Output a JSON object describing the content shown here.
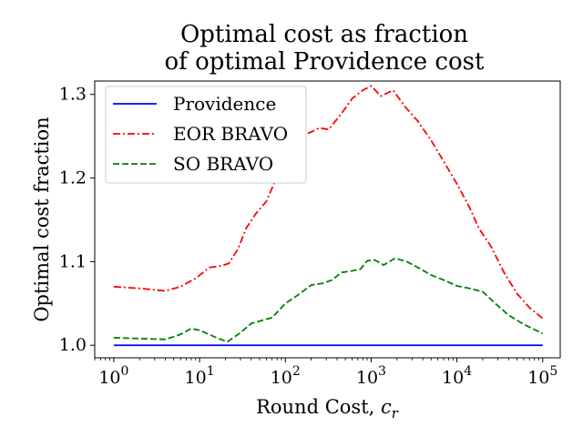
{
  "chart_data": {
    "type": "line",
    "title_line1": "Optimal cost as fraction",
    "title_line2": "of optimal Providence cost",
    "xlabel": "Round Cost, ",
    "xlabel_var": "c",
    "xlabel_sub": "r",
    "ylabel": "Optimal cost fraction",
    "xscale": "log",
    "xlim": [
      0.6,
      160000
    ],
    "ylim": [
      0.985,
      1.316
    ],
    "x_ticks": [
      {
        "value": 1,
        "base": "10",
        "exp": "0"
      },
      {
        "value": 10,
        "base": "10",
        "exp": "1"
      },
      {
        "value": 100,
        "base": "10",
        "exp": "2"
      },
      {
        "value": 1000,
        "base": "10",
        "exp": "3"
      },
      {
        "value": 10000,
        "base": "10",
        "exp": "4"
      },
      {
        "value": 100000,
        "base": "10",
        "exp": "5"
      }
    ],
    "y_ticks": [
      {
        "value": 1.0,
        "label": "1.0"
      },
      {
        "value": 1.1,
        "label": "1.1"
      },
      {
        "value": 1.2,
        "label": "1.2"
      },
      {
        "value": 1.3,
        "label": "1.3"
      }
    ],
    "legend_position": "top-left",
    "grid": false,
    "series": [
      {
        "name": "Providence",
        "color": "#0000ff",
        "dash": "solid",
        "points": [
          [
            1,
            1.0
          ],
          [
            100000,
            1.0
          ]
        ]
      },
      {
        "name": "EOR BRAVO",
        "color": "#ff0000",
        "dash": "dashdot",
        "points": [
          [
            1,
            1.07
          ],
          [
            2,
            1.068
          ],
          [
            4,
            1.065
          ],
          [
            6,
            1.07
          ],
          [
            9,
            1.08
          ],
          [
            13,
            1.093
          ],
          [
            18,
            1.095
          ],
          [
            22,
            1.098
          ],
          [
            28,
            1.115
          ],
          [
            35,
            1.14
          ],
          [
            45,
            1.157
          ],
          [
            60,
            1.172
          ],
          [
            75,
            1.195
          ],
          [
            100,
            1.222
          ],
          [
            150,
            1.25
          ],
          [
            200,
            1.255
          ],
          [
            250,
            1.26
          ],
          [
            320,
            1.258
          ],
          [
            450,
            1.277
          ],
          [
            600,
            1.295
          ],
          [
            800,
            1.305
          ],
          [
            1000,
            1.31
          ],
          [
            1300,
            1.298
          ],
          [
            1800,
            1.305
          ],
          [
            2500,
            1.285
          ],
          [
            3500,
            1.268
          ],
          [
            5000,
            1.245
          ],
          [
            7000,
            1.22
          ],
          [
            10000,
            1.193
          ],
          [
            14000,
            1.165
          ],
          [
            18000,
            1.14
          ],
          [
            25000,
            1.118
          ],
          [
            35000,
            1.088
          ],
          [
            50000,
            1.062
          ],
          [
            70000,
            1.045
          ],
          [
            100000,
            1.032
          ]
        ]
      },
      {
        "name": "SO BRAVO",
        "color": "#008000",
        "dash": "dashed",
        "points": [
          [
            1,
            1.009
          ],
          [
            2,
            1.008
          ],
          [
            4,
            1.007
          ],
          [
            6,
            1.013
          ],
          [
            8,
            1.02
          ],
          [
            10,
            1.018
          ],
          [
            15,
            1.01
          ],
          [
            21,
            1.004
          ],
          [
            30,
            1.015
          ],
          [
            40,
            1.026
          ],
          [
            55,
            1.03
          ],
          [
            70,
            1.033
          ],
          [
            100,
            1.05
          ],
          [
            140,
            1.06
          ],
          [
            200,
            1.072
          ],
          [
            270,
            1.074
          ],
          [
            350,
            1.078
          ],
          [
            450,
            1.087
          ],
          [
            600,
            1.089
          ],
          [
            750,
            1.091
          ],
          [
            900,
            1.101
          ],
          [
            1100,
            1.102
          ],
          [
            1400,
            1.096
          ],
          [
            1900,
            1.104
          ],
          [
            2600,
            1.1
          ],
          [
            3500,
            1.093
          ],
          [
            5000,
            1.084
          ],
          [
            7000,
            1.078
          ],
          [
            10000,
            1.071
          ],
          [
            14000,
            1.068
          ],
          [
            20000,
            1.064
          ],
          [
            28000,
            1.05
          ],
          [
            40000,
            1.036
          ],
          [
            60000,
            1.025
          ],
          [
            100000,
            1.014
          ]
        ]
      }
    ]
  }
}
